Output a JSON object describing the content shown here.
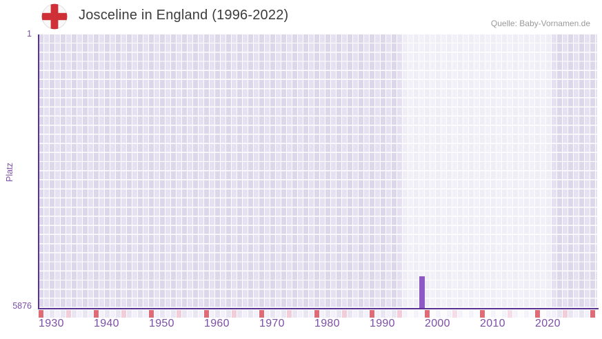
{
  "header": {
    "title": "Josceline in England (1996-2022)",
    "source": "Quelle: Baby-Vornamen.de",
    "flag_icon": "england-flag-icon"
  },
  "chart_data": {
    "type": "bar",
    "title": "Josceline in England (1996-2022)",
    "source": "Quelle: Baby-Vornamen.de",
    "ylabel": "Platz",
    "y_axis": {
      "min": 1,
      "max": 5876,
      "inverted": true,
      "tick_labels": [
        "1",
        "5876"
      ]
    },
    "x_axis": {
      "start_year": 1930,
      "end_year": 2030,
      "cell_count": 101,
      "tick_years": [
        1930,
        1940,
        1950,
        1960,
        1970,
        1980,
        1990,
        2000,
        2010,
        2020
      ]
    },
    "highlight_band": {
      "from_year": 1996,
      "to_year": 2022
    },
    "series": [
      {
        "year": 1999,
        "rank": 5200
      }
    ],
    "grid": true,
    "legend": "none",
    "colors": {
      "bar": "#8d59c5",
      "axis_line": "#5b3194",
      "tick_label": "#7c4fa7",
      "grid_dark": "#dcd7eb",
      "grid_light": "#e5e1f0",
      "band_overlay": "rgba(255,255,255,0.55)",
      "ruler_red": "#df6b77",
      "ruler_pink": "#f2cdd9",
      "ruler_pink_band": "#f6dce6",
      "ruler_pale_a": "#e9e5f3",
      "ruler_pale_b": "#f2f0f9",
      "ruler_band_a": "#f4f2fa",
      "ruler_band_b": "#fbfafd",
      "title_text": "#3c3c3c",
      "source_text": "#9a9a9a",
      "flag_red": "#cf3038"
    }
  }
}
